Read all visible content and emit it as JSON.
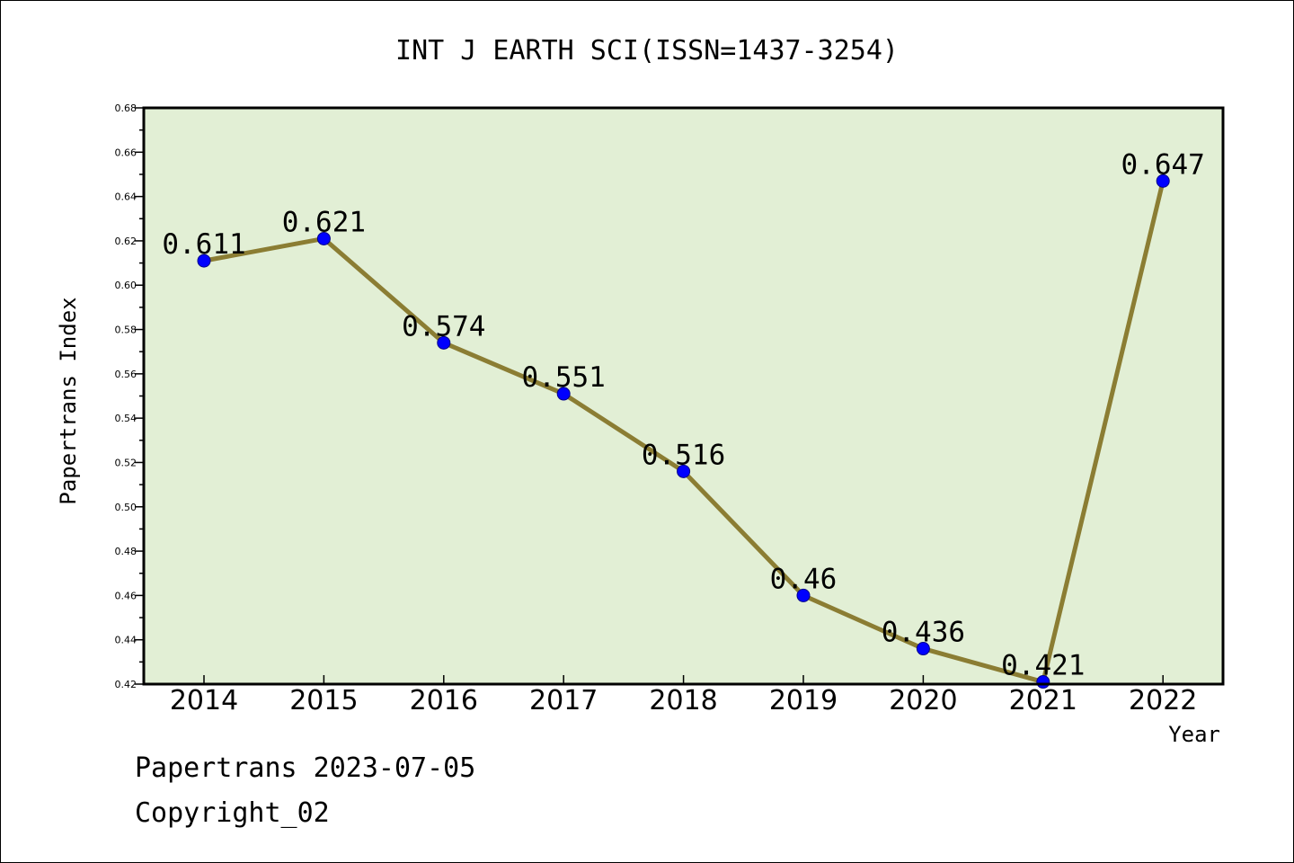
{
  "chart_data": {
    "type": "line",
    "title": "INT J EARTH SCI(ISSN=1437-3254)",
    "xlabel": "Year",
    "ylabel": "Papertrans Index",
    "categories": [
      "2014",
      "2015",
      "2016",
      "2017",
      "2018",
      "2019",
      "2020",
      "2021",
      "2022"
    ],
    "values": [
      0.611,
      0.621,
      0.574,
      0.551,
      0.516,
      0.46,
      0.436,
      0.421,
      0.647
    ],
    "data_labels": [
      "0.611",
      "0.621",
      "0.574",
      "0.551",
      "0.516",
      "0.46",
      "0.436",
      "0.421",
      "0.647"
    ],
    "ylim": [
      0.42,
      0.68
    ],
    "yticks": [
      "0.42",
      "0.44",
      "0.46",
      "0.48",
      "0.50",
      "0.52",
      "0.54",
      "0.56",
      "0.58",
      "0.60",
      "0.62",
      "0.64",
      "0.66",
      "0.68"
    ],
    "grid": false,
    "colors": {
      "plot_background": "#e2efd5",
      "line": "#8b7d33",
      "marker": "#0000ff"
    }
  },
  "footer": {
    "source": "Papertrans 2023-07-05",
    "copyright": "Copyright_02"
  }
}
